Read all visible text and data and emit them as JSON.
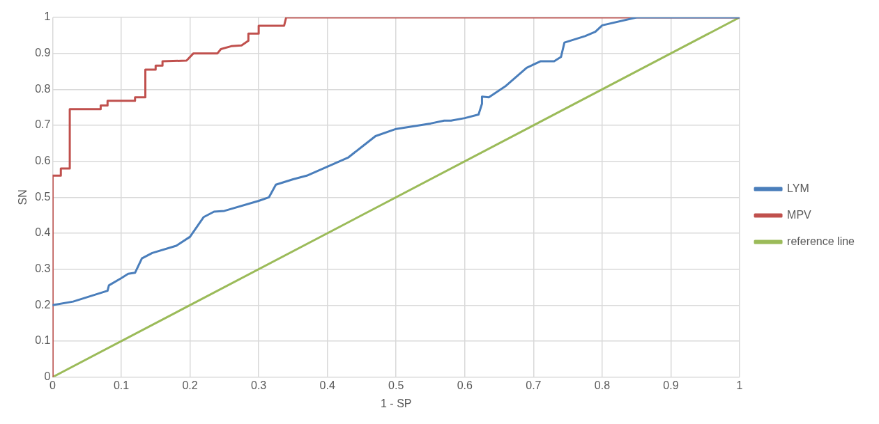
{
  "chart_data": {
    "type": "line",
    "xlabel": "1 - SP",
    "ylabel": "SN",
    "xlim": [
      0,
      1
    ],
    "ylim": [
      0,
      1
    ],
    "xticks": [
      0,
      0.1,
      0.2,
      0.3,
      0.4,
      0.5,
      0.6,
      0.7,
      0.8,
      0.9,
      1
    ],
    "yticks": [
      0,
      0.1,
      0.2,
      0.3,
      0.4,
      0.5,
      0.6,
      0.7,
      0.8,
      0.9,
      1
    ],
    "grid": true,
    "legend": "right",
    "marker": "none",
    "line_style": "solid",
    "series": [
      {
        "name": "LYM",
        "color": "#4a7ebb",
        "x": [
          0,
          0.03,
          0.08,
          0.082,
          0.1,
          0.11,
          0.12,
          0.13,
          0.145,
          0.18,
          0.2,
          0.22,
          0.235,
          0.25,
          0.3,
          0.315,
          0.325,
          0.35,
          0.37,
          0.4,
          0.43,
          0.45,
          0.47,
          0.5,
          0.55,
          0.57,
          0.58,
          0.6,
          0.62,
          0.625,
          0.625,
          0.635,
          0.66,
          0.69,
          0.71,
          0.73,
          0.74,
          0.745,
          0.775,
          0.79,
          0.8,
          0.85,
          1
        ],
        "values": [
          0.2,
          0.21,
          0.24,
          0.255,
          0.275,
          0.287,
          0.29,
          0.33,
          0.345,
          0.365,
          0.39,
          0.445,
          0.46,
          0.462,
          0.49,
          0.5,
          0.535,
          0.55,
          0.56,
          0.585,
          0.61,
          0.64,
          0.67,
          0.69,
          0.705,
          0.713,
          0.713,
          0.72,
          0.73,
          0.76,
          0.78,
          0.778,
          0.81,
          0.86,
          0.878,
          0.878,
          0.89,
          0.93,
          0.948,
          0.96,
          0.978,
          1,
          1
        ]
      },
      {
        "name": "MPV",
        "color": "#c0504d",
        "x": [
          0,
          0,
          0.012,
          0.012,
          0.025,
          0.025,
          0.07,
          0.07,
          0.08,
          0.08,
          0.12,
          0.12,
          0.135,
          0.135,
          0.15,
          0.15,
          0.16,
          0.16,
          0.195,
          0.205,
          0.24,
          0.245,
          0.26,
          0.275,
          0.285,
          0.285,
          0.3,
          0.3,
          0.337,
          0.34,
          1
        ],
        "values": [
          0,
          0.56,
          0.56,
          0.58,
          0.58,
          0.745,
          0.745,
          0.755,
          0.755,
          0.768,
          0.768,
          0.778,
          0.778,
          0.855,
          0.855,
          0.866,
          0.866,
          0.878,
          0.88,
          0.9,
          0.9,
          0.912,
          0.92,
          0.922,
          0.935,
          0.955,
          0.955,
          0.977,
          0.977,
          1,
          1
        ]
      },
      {
        "name": "reference line",
        "color": "#9bbb59",
        "x": [
          0,
          1
        ],
        "values": [
          0,
          1
        ]
      }
    ]
  }
}
